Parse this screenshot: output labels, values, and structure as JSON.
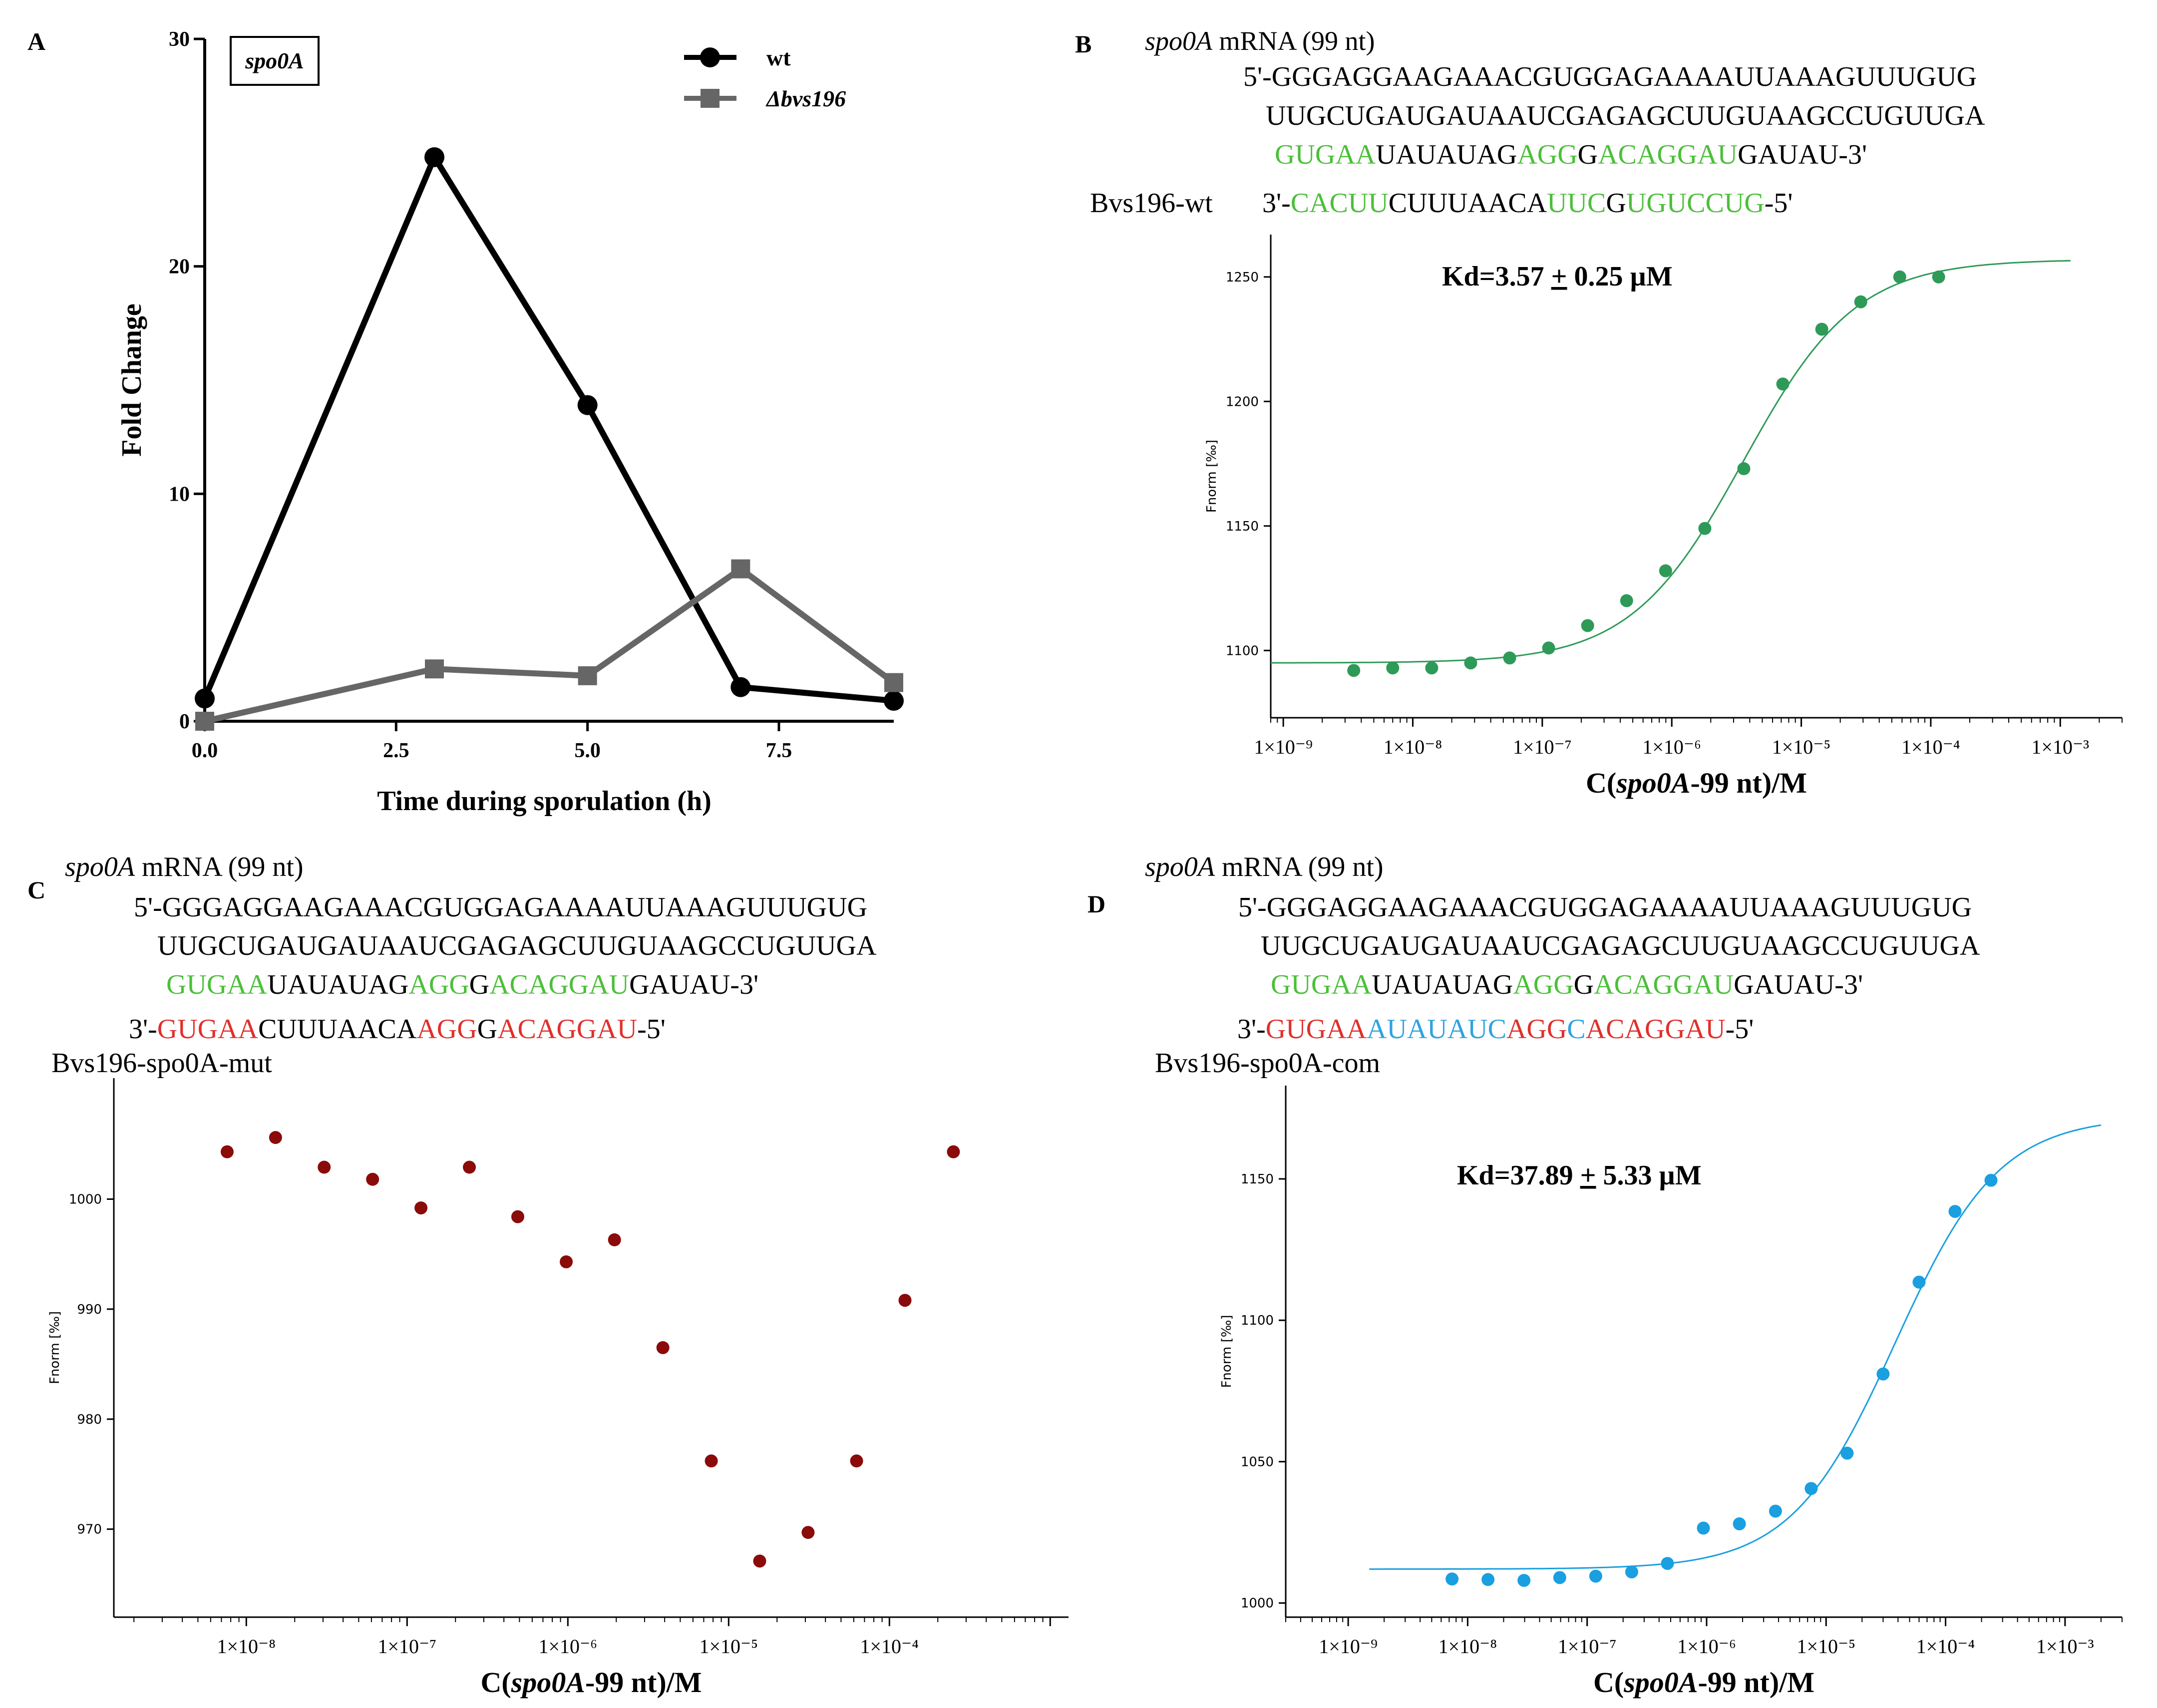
{
  "panels": {
    "A": {
      "letter": "A",
      "gene_box": "spo0A",
      "chart_data": {
        "type": "line",
        "title": "",
        "xlabel": "Time during sporulation (h)",
        "ylabel": "Fold Change",
        "xlim": [
          0,
          9
        ],
        "ylim": [
          0,
          30
        ],
        "xticks": [
          0,
          2.5,
          5,
          7.5
        ],
        "xtick_labels": [
          "0.0",
          "2.5",
          "5.0",
          "7.5"
        ],
        "yticks": [
          0,
          10,
          20,
          30
        ],
        "ytick_labels": [
          "0",
          "10",
          "20",
          "30"
        ],
        "series": [
          {
            "name": "wt",
            "marker": "circle",
            "color": "#000000",
            "x": [
              0,
              3,
              5,
              7,
              9
            ],
            "y": [
              1.0,
              24.8,
              13.9,
              1.5,
              0.9
            ]
          },
          {
            "name": "Δbvs196",
            "marker": "square",
            "color": "#666666",
            "x": [
              0,
              3,
              5,
              7,
              9
            ],
            "y": [
              0.0,
              2.3,
              2.0,
              6.7,
              1.7
            ]
          }
        ]
      }
    },
    "B": {
      "letter": "B",
      "seq": {
        "title_gene": "spo0A",
        "title_rest": " mRNA (99 nt)",
        "mrna1": "5'-GGGAGGAAGAAACGUGGAGAAAAUUAAAGUUUGUG",
        "mrna2": "UUGCUGAUGAUAAUCGAGAGCUUGUAAGCCUGUUGA",
        "mrna3": {
          "s1": "GUGAA",
          "s2": "UAUAUAG",
          "s3": "AGG",
          "s4": "G",
          "s5": "ACAGGAU",
          "s6": "GAUAU-3'"
        },
        "rna_label": "Bvs196-wt",
        "rna": {
          "s1": "3'-",
          "s2": "CACUU",
          "s3": "CUUUAACA",
          "s4": "UUC",
          "s5": "G",
          "s6": "UGUCCUG",
          "s7": "-5'"
        }
      },
      "kd": {
        "pre": "Kd=3.57 ",
        "pm": "+",
        "post": " 0.25 µM"
      },
      "chart_data": {
        "type": "scatter",
        "title": "",
        "xlabel": {
          "pre": "C(",
          "italic": "spo0A",
          "post": "-99 nt)/M"
        },
        "ylabel": "Fnorm [‰]",
        "x_log": true,
        "xlim": [
          8e-10,
          0.003
        ],
        "ylim": [
          1073,
          1267
        ],
        "yticks": [
          1100,
          1150,
          1200,
          1250
        ],
        "ytick_labels": [
          "1100",
          "1150",
          "1200",
          "1250"
        ],
        "xtick_exps": [
          -9,
          -8,
          -7,
          -6,
          -5,
          -4,
          -3
        ],
        "xtick_labels": [
          "1×10⁻⁹",
          "1×10⁻⁸",
          "1×10⁻⁷",
          "1×10⁻⁶",
          "1×10⁻⁵",
          "1×10⁻⁴",
          "1×10⁻³"
        ],
        "color": "#2e9a58",
        "points": {
          "x": [
            3.5e-09,
            7e-09,
            1.4e-08,
            2.8e-08,
            5.6e-08,
            1.12e-07,
            2.24e-07,
            4.48e-07,
            8.96e-07,
            1.8e-06,
            3.6e-06,
            7.2e-06,
            1.44e-05,
            2.88e-05,
            5.76e-05,
            0.000115
          ],
          "y": [
            1092,
            1093,
            1093,
            1095,
            1097,
            1101,
            1110,
            1120,
            1132,
            1149,
            1173,
            1207,
            1229,
            1240,
            1250,
            1250
          ]
        },
        "fit": {
          "model": "binding_sigmoid",
          "bottom": 1095,
          "top": 1257,
          "ec50": 3.57e-06,
          "hill": 1.0,
          "xrange": [
            8e-10,
            0.0012
          ]
        }
      }
    },
    "C": {
      "letter": "C",
      "seq": {
        "title_gene": "spo0A",
        "title_rest": " mRNA (99 nt)",
        "mrna1": "5'-GGGAGGAAGAAACGUGGAGAAAAUUAAAGUUUGUG",
        "mrna2": "UUGCUGAUGAUAAUCGAGAGCUUGUAAGCCUGUUGA",
        "mrna3": {
          "s1": "GUGAA",
          "s2": "UAUAUAG",
          "s3": "AGG",
          "s4": "G",
          "s5": "ACAGGAU",
          "s6": "GAUAU-3'"
        },
        "rna": {
          "s1": "3'-",
          "s2": "GUGAA",
          "s3": "CUUUAACA",
          "s4": "AGG",
          "s5": "G",
          "s6": "ACAGGAU",
          "s7": "-5'"
        },
        "rna_label": "Bvs196-spo0A-mut"
      },
      "chart_data": {
        "type": "scatter",
        "title": "",
        "xlabel": {
          "pre": "C(",
          "italic": "spo0A",
          "post": "-99 nt)/M"
        },
        "ylabel": "Fnorm [‰]",
        "x_log": true,
        "xlim": [
          1.5e-09,
          0.0013
        ],
        "ylim": [
          962,
          1011
        ],
        "yticks": [
          970,
          980,
          990,
          1000
        ],
        "ytick_labels": [
          "970",
          "980",
          "990",
          "1000"
        ],
        "xtick_exps": [
          -8,
          -7,
          -6,
          -5,
          -4
        ],
        "xtick_labels": [
          "1×10⁻⁸",
          "1×10⁻⁷",
          "1×10⁻⁶",
          "1×10⁻⁵",
          "1×10⁻⁴"
        ],
        "color": "#8b0a0a",
        "points": {
          "x": [
            7.6e-09,
            1.52e-08,
            3.05e-08,
            6.1e-08,
            1.22e-07,
            2.44e-07,
            4.88e-07,
            9.77e-07,
            1.95e-06,
            3.9e-06,
            7.8e-06,
            1.56e-05,
            3.12e-05,
            6.25e-05,
            0.000125,
            0.00025
          ],
          "y": [
            1004.3,
            1005.6,
            1002.9,
            1001.8,
            999.2,
            1002.9,
            998.4,
            994.3,
            996.3,
            986.5,
            976.2,
            967.1,
            969.7,
            976.2,
            990.8,
            1004.3
          ]
        }
      }
    },
    "D": {
      "letter": "D",
      "seq": {
        "title_gene": "spo0A",
        "title_rest": " mRNA (99 nt)",
        "mrna1": "5'-GGGAGGAAGAAACGUGGAGAAAAUUAAAGUUUGUG",
        "mrna2": "UUGCUGAUGAUAAUCGAGAGCUUGUAAGCCUGUUGA",
        "mrna3": {
          "s1": "GUGAA",
          "s2": "UAUAUAG",
          "s3": "AGG",
          "s4": "G",
          "s5": "ACAGGAU",
          "s6": "GAUAU-3'"
        },
        "rna": {
          "s1": "3'-",
          "s2": "GUGAA",
          "s3": "AUAUAUC",
          "s4": "AGG",
          "s5": "C",
          "s6": "ACAGGAU",
          "s7": "-5'"
        },
        "rna_label": "Bvs196-spo0A-com"
      },
      "kd": {
        "pre": "Kd=37.89 ",
        "pm": "+",
        "post": " 5.33 µM"
      },
      "chart_data": {
        "type": "scatter",
        "title": "",
        "xlabel": {
          "pre": "C(",
          "italic": "spo0A",
          "post": "-99 nt)/M"
        },
        "ylabel": "Fnorm [‰]",
        "x_log": true,
        "xlim": [
          3e-10,
          0.003
        ],
        "ylim": [
          995,
          1183
        ],
        "yticks": [
          1000,
          1050,
          1100,
          1150
        ],
        "ytick_labels": [
          "1000",
          "1050",
          "1100",
          "1150"
        ],
        "xtick_exps": [
          -9,
          -8,
          -7,
          -6,
          -5,
          -4,
          -3
        ],
        "xtick_labels": [
          "1×10⁻⁹",
          "1×10⁻⁸",
          "1×10⁻⁷",
          "1×10⁻⁶",
          "1×10⁻⁵",
          "1×10⁻⁴",
          "1×10⁻³"
        ],
        "color": "#1a9fe0",
        "points": {
          "x": [
            7.4e-09,
            1.48e-08,
            2.96e-08,
            5.9e-08,
            1.18e-07,
            2.36e-07,
            4.7e-07,
            9.4e-07,
            1.88e-06,
            3.77e-06,
            7.5e-06,
            1.5e-05,
            3e-05,
            6e-05,
            0.00012,
            0.00024
          ],
          "y": [
            1008.5,
            1008.3,
            1008.0,
            1009.0,
            1009.5,
            1011.0,
            1014.0,
            1026.5,
            1028.0,
            1032.5,
            1040.5,
            1053.0,
            1081.0,
            1113.5,
            1138.5,
            1149.5
          ]
        },
        "fit": {
          "model": "binding_sigmoid",
          "bottom": 1012,
          "top": 1172,
          "ec50": 3.789e-05,
          "hill": 1.0,
          "xrange": [
            1.5e-09,
            0.002
          ]
        }
      }
    }
  }
}
